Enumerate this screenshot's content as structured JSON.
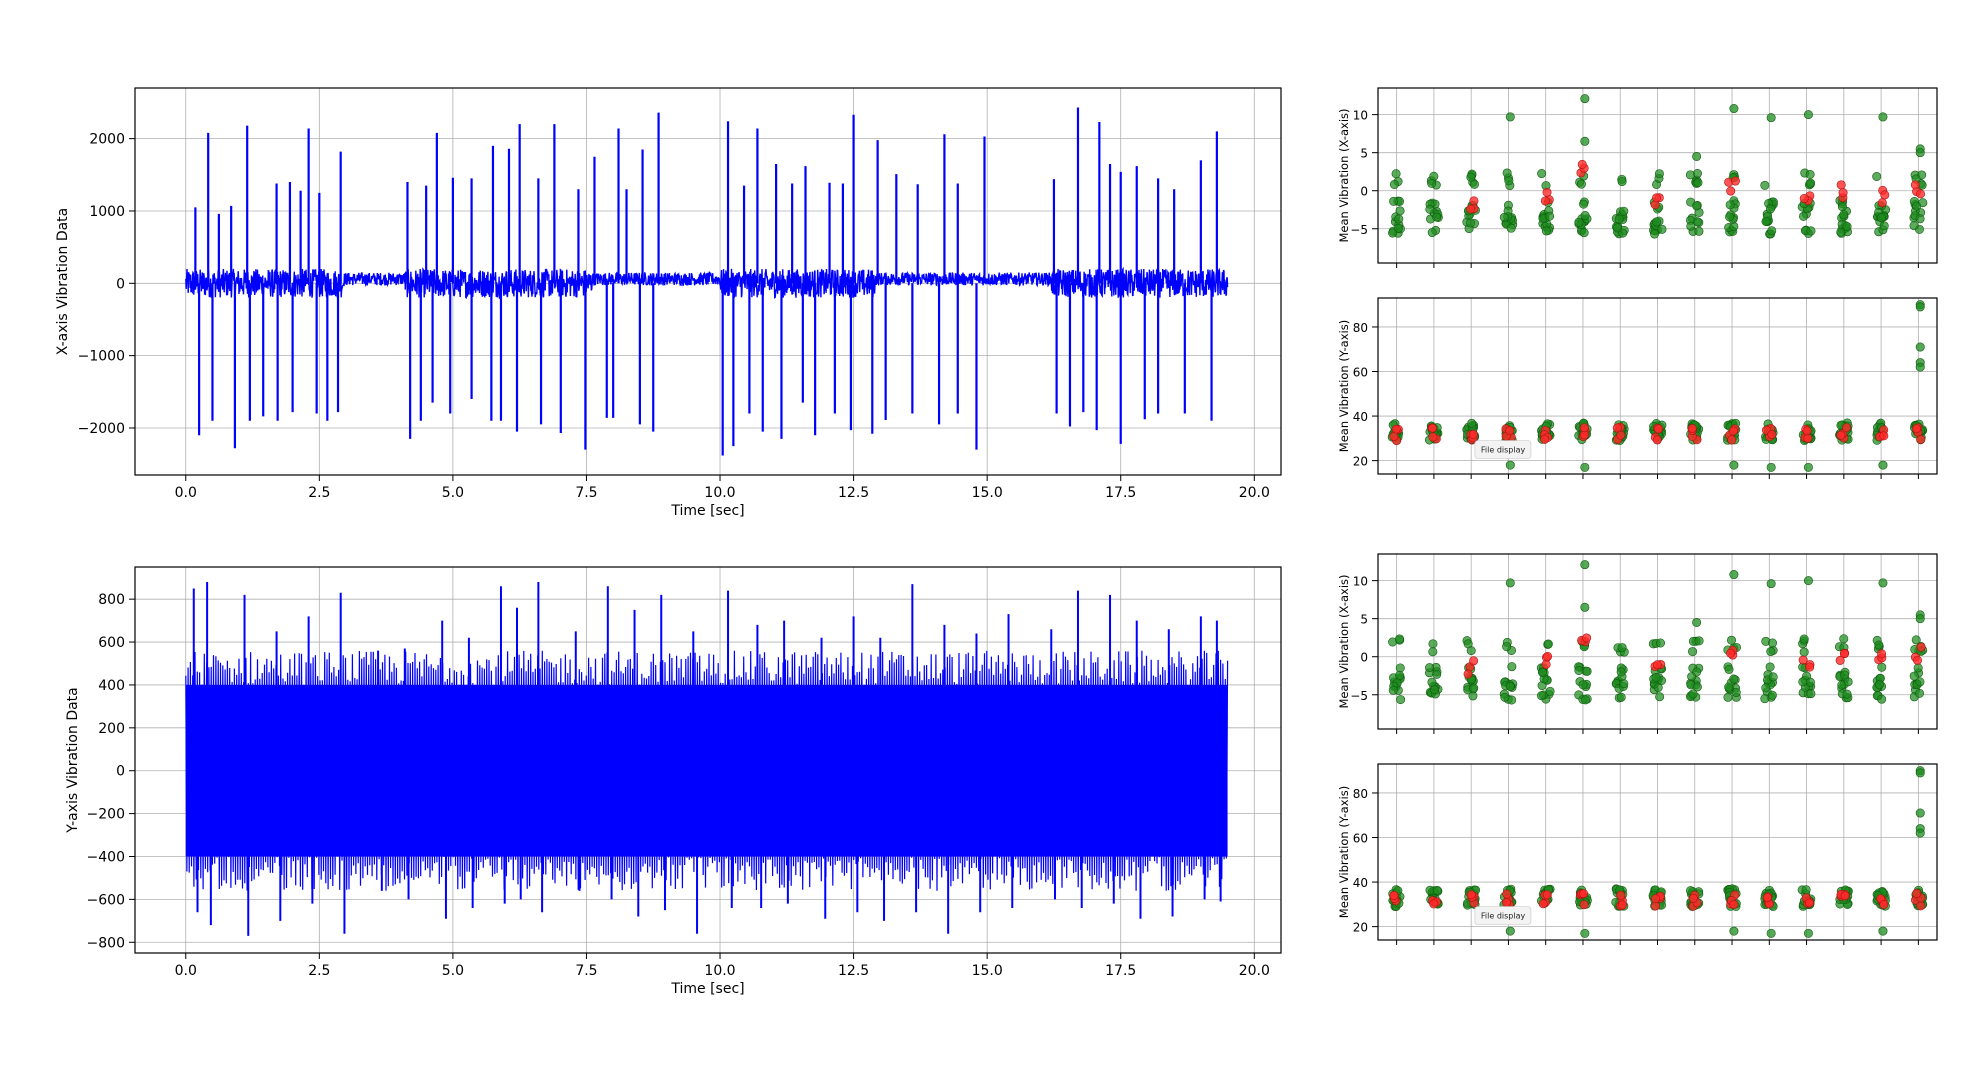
{
  "chart_data": [
    {
      "id": "x_time",
      "type": "line",
      "xlabel": "Time [sec]",
      "ylabel": "X-axis Vibration Data",
      "xlim": [
        -0.95,
        20.5
      ],
      "ylim": [
        -2650,
        2700
      ],
      "xticks": [
        0,
        2.5,
        5,
        7.5,
        10,
        12.5,
        15,
        17.5,
        20
      ],
      "xtick_labels": [
        "0.0",
        "2.5",
        "5.0",
        "7.5",
        "10.0",
        "12.5",
        "15.0",
        "17.5",
        "20.0"
      ],
      "yticks": [
        -2000,
        -1000,
        0,
        1000,
        2000
      ],
      "ytick_labels": [
        "−2000",
        "−1000",
        "0",
        "1000",
        "2000"
      ],
      "grid": true,
      "color": "#0000ff",
      "series": [
        {
          "x_range": [
            0,
            19.5
          ],
          "baseline_amplitude": 200,
          "quiet_segments": [
            [
              2.95,
              4.1
            ],
            [
              7.6,
              10.0
            ],
            [
              12.9,
              16.2
            ]
          ],
          "positive_spikes": [
            [
              0.18,
              1050
            ],
            [
              0.42,
              2080
            ],
            [
              0.62,
              960
            ],
            [
              0.85,
              1070
            ],
            [
              1.15,
              2180
            ],
            [
              1.7,
              1380
            ],
            [
              1.95,
              1400
            ],
            [
              2.15,
              1280
            ],
            [
              2.3,
              2140
            ],
            [
              2.5,
              1250
            ],
            [
              2.9,
              1820
            ],
            [
              4.15,
              1400
            ],
            [
              4.5,
              1350
            ],
            [
              4.7,
              2080
            ],
            [
              5.0,
              1460
            ],
            [
              5.35,
              1450
            ],
            [
              5.75,
              1900
            ],
            [
              6.05,
              1860
            ],
            [
              6.25,
              2200
            ],
            [
              6.6,
              1450
            ],
            [
              6.9,
              2200
            ],
            [
              7.35,
              1300
            ],
            [
              7.65,
              1750
            ],
            [
              8.1,
              2140
            ],
            [
              8.25,
              1300
            ],
            [
              8.55,
              1850
            ],
            [
              8.85,
              2360
            ],
            [
              10.15,
              2240
            ],
            [
              10.45,
              1350
            ],
            [
              10.7,
              2140
            ],
            [
              11.05,
              1650
            ],
            [
              11.35,
              1380
            ],
            [
              11.6,
              1620
            ],
            [
              12.05,
              1390
            ],
            [
              12.3,
              1380
            ],
            [
              12.5,
              2330
            ],
            [
              12.95,
              1980
            ],
            [
              13.3,
              1510
            ],
            [
              13.7,
              1370
            ],
            [
              14.2,
              2060
            ],
            [
              14.45,
              1380
            ],
            [
              14.95,
              2030
            ],
            [
              16.25,
              1440
            ],
            [
              16.7,
              2430
            ],
            [
              17.1,
              2230
            ],
            [
              17.3,
              1650
            ],
            [
              17.5,
              1540
            ],
            [
              17.8,
              1620
            ],
            [
              18.2,
              1450
            ],
            [
              18.5,
              1300
            ],
            [
              19.0,
              1700
            ],
            [
              19.3,
              2100
            ]
          ],
          "negative_spikes": [
            [
              0.25,
              -2100
            ],
            [
              0.5,
              -1900
            ],
            [
              0.92,
              -2280
            ],
            [
              1.2,
              -1900
            ],
            [
              1.45,
              -1840
            ],
            [
              1.72,
              -1900
            ],
            [
              2.0,
              -1780
            ],
            [
              2.45,
              -1800
            ],
            [
              2.65,
              -1900
            ],
            [
              2.85,
              -1780
            ],
            [
              4.2,
              -2150
            ],
            [
              4.4,
              -1900
            ],
            [
              4.62,
              -1650
            ],
            [
              4.95,
              -1800
            ],
            [
              5.35,
              -1600
            ],
            [
              5.72,
              -1900
            ],
            [
              5.9,
              -1900
            ],
            [
              6.2,
              -2050
            ],
            [
              6.65,
              -1950
            ],
            [
              7.02,
              -2070
            ],
            [
              7.48,
              -2300
            ],
            [
              7.88,
              -1860
            ],
            [
              8.0,
              -1860
            ],
            [
              8.5,
              -1950
            ],
            [
              8.75,
              -2050
            ],
            [
              10.05,
              -2380
            ],
            [
              10.25,
              -2250
            ],
            [
              10.55,
              -1800
            ],
            [
              10.8,
              -2050
            ],
            [
              11.15,
              -2150
            ],
            [
              11.55,
              -1650
            ],
            [
              11.78,
              -2100
            ],
            [
              12.15,
              -1800
            ],
            [
              12.45,
              -2030
            ],
            [
              12.85,
              -2080
            ],
            [
              13.1,
              -1890
            ],
            [
              13.6,
              -1800
            ],
            [
              14.1,
              -1950
            ],
            [
              14.45,
              -1800
            ],
            [
              14.8,
              -2300
            ],
            [
              16.3,
              -1800
            ],
            [
              16.55,
              -1980
            ],
            [
              16.8,
              -1780
            ],
            [
              17.05,
              -2030
            ],
            [
              17.5,
              -2220
            ],
            [
              17.95,
              -1880
            ],
            [
              18.2,
              -1800
            ],
            [
              18.7,
              -1800
            ],
            [
              19.2,
              -1900
            ]
          ]
        }
      ]
    },
    {
      "id": "y_time",
      "type": "line",
      "xlabel": "Time [sec]",
      "ylabel": "Y-axis Vibration Data",
      "xlim": [
        -0.95,
        20.5
      ],
      "ylim": [
        -850,
        950
      ],
      "xticks": [
        0,
        2.5,
        5,
        7.5,
        10,
        12.5,
        15,
        17.5,
        20
      ],
      "xtick_labels": [
        "0.0",
        "2.5",
        "5.0",
        "7.5",
        "10.0",
        "12.5",
        "15.0",
        "17.5",
        "20.0"
      ],
      "yticks": [
        -800,
        -600,
        -400,
        -200,
        0,
        200,
        400,
        600,
        800
      ],
      "ytick_labels": [
        "−800",
        "−600",
        "−400",
        "−200",
        "0",
        "200",
        "400",
        "600",
        "800"
      ],
      "grid": true,
      "color": "#0000ff",
      "series": [
        {
          "x_range": [
            0,
            19.5
          ],
          "envelope": [
            -400,
            400
          ],
          "peak_x": [
            0.15,
            0.4,
            1.1,
            1.7,
            2.3,
            2.9,
            3.6,
            4.1,
            4.8,
            5.3,
            5.9,
            6.2,
            6.6,
            7.3,
            7.9,
            8.4,
            8.9,
            9.5,
            10.15,
            10.7,
            11.2,
            11.9,
            12.5,
            13.0,
            13.6,
            14.2,
            14.8,
            15.4,
            16.2,
            16.7,
            17.3,
            17.8,
            18.4,
            19.0,
            19.3
          ],
          "peak_y": [
            850,
            880,
            820,
            650,
            720,
            830,
            560,
            570,
            700,
            620,
            860,
            760,
            880,
            650,
            860,
            750,
            820,
            650,
            840,
            680,
            700,
            620,
            720,
            620,
            870,
            680,
            640,
            730,
            660,
            840,
            820,
            700,
            660,
            720,
            700
          ],
          "trough_y": [
            -660,
            -720,
            -770,
            -700,
            -620,
            -760,
            -560,
            -600,
            -690,
            -640,
            -620,
            -600,
            -660,
            -560,
            -600,
            -680,
            -650,
            -760,
            -640,
            -640,
            -620,
            -690,
            -660,
            -700,
            -660,
            -760,
            -660,
            -640,
            -600,
            -640,
            -620,
            -690,
            -680,
            -600,
            -610
          ]
        }
      ]
    },
    {
      "id": "mean_x_1",
      "type": "scatter",
      "xlabel": "",
      "ylabel": "Mean Vibration (X-axis)",
      "ylim": [
        -9.5,
        13.5
      ],
      "yticks": [
        -5,
        0,
        5,
        10
      ],
      "ytick_labels": [
        "−5",
        "0",
        "5",
        "10"
      ],
      "grid": true,
      "groups": 15,
      "colors": {
        "normal": "#1e8c1e",
        "anomaly": "#ff2a2a"
      },
      "anomaly_groups": [
        [
          2,
          -1.5
        ],
        [
          4,
          -0.5
        ],
        [
          5,
          2.5
        ],
        [
          7,
          -1.0
        ],
        [
          9,
          0.3
        ],
        [
          11,
          -0.8
        ],
        [
          12,
          0
        ],
        [
          13,
          -0.6
        ],
        [
          14,
          0.5
        ]
      ],
      "outliers": [
        [
          3,
          9.7
        ],
        [
          5,
          12.1
        ],
        [
          5,
          6.5
        ],
        [
          6,
          1.2
        ],
        [
          8,
          4.5
        ],
        [
          8,
          -2.0
        ],
        [
          9,
          10.8
        ],
        [
          10,
          9.6
        ],
        [
          11,
          10.0
        ],
        [
          13,
          9.7
        ],
        [
          14,
          5.5
        ],
        [
          14,
          5.0
        ]
      ]
    },
    {
      "id": "mean_y_1",
      "type": "scatter",
      "xlabel": "",
      "ylabel": "Mean Vibration (Y-axis)",
      "ylim": [
        14,
        93
      ],
      "yticks": [
        20,
        40,
        60,
        80
      ],
      "ytick_labels": [
        "20",
        "40",
        "60",
        "80"
      ],
      "grid": true,
      "groups": 15,
      "colors": {
        "normal": "#1e8c1e",
        "anomaly": "#ff2a2a"
      },
      "outliers": [
        [
          3,
          18
        ],
        [
          5,
          17
        ],
        [
          9,
          18
        ],
        [
          10,
          17
        ],
        [
          11,
          17
        ],
        [
          13,
          18
        ],
        [
          14,
          90
        ],
        [
          14,
          89
        ],
        [
          14,
          71
        ],
        [
          14,
          64
        ],
        [
          14,
          62
        ]
      ],
      "tooltip": "File display"
    },
    {
      "id": "mean_x_2",
      "type": "scatter",
      "xlabel": "",
      "ylabel": "Mean Vibration (X-axis)",
      "ylim": [
        -9.5,
        13.5
      ],
      "yticks": [
        -5,
        0,
        5,
        10
      ],
      "ytick_labels": [
        "−5",
        "0",
        "5",
        "10"
      ],
      "grid": true,
      "groups": 15,
      "colors": {
        "normal": "#1e8c1e",
        "anomaly": "#ff2a2a"
      },
      "anomaly_groups": [
        [
          2,
          -1.5
        ],
        [
          4,
          -0.5
        ],
        [
          5,
          2.5
        ],
        [
          7,
          -1.0
        ],
        [
          9,
          0.3
        ],
        [
          11,
          -0.8
        ],
        [
          12,
          0
        ],
        [
          13,
          -0.6
        ],
        [
          14,
          0.5
        ]
      ],
      "outliers": [
        [
          3,
          9.7
        ],
        [
          5,
          12.1
        ],
        [
          5,
          6.5
        ],
        [
          6,
          1.2
        ],
        [
          8,
          4.5
        ],
        [
          8,
          -2.0
        ],
        [
          9,
          10.8
        ],
        [
          10,
          9.6
        ],
        [
          11,
          10.0
        ],
        [
          13,
          9.7
        ],
        [
          14,
          5.5
        ],
        [
          14,
          5.0
        ]
      ]
    },
    {
      "id": "mean_y_2",
      "type": "scatter",
      "xlabel": "",
      "ylabel": "Mean Vibration (Y-axis)",
      "ylim": [
        14,
        93
      ],
      "yticks": [
        20,
        40,
        60,
        80
      ],
      "ytick_labels": [
        "20",
        "40",
        "60",
        "80"
      ],
      "grid": true,
      "groups": 15,
      "colors": {
        "normal": "#1e8c1e",
        "anomaly": "#ff2a2a"
      },
      "outliers": [
        [
          3,
          18
        ],
        [
          5,
          17
        ],
        [
          9,
          18
        ],
        [
          10,
          17
        ],
        [
          11,
          17
        ],
        [
          13,
          18
        ],
        [
          14,
          90
        ],
        [
          14,
          89
        ],
        [
          14,
          71
        ],
        [
          14,
          64
        ],
        [
          14,
          62
        ]
      ],
      "tooltip": "File display"
    }
  ]
}
